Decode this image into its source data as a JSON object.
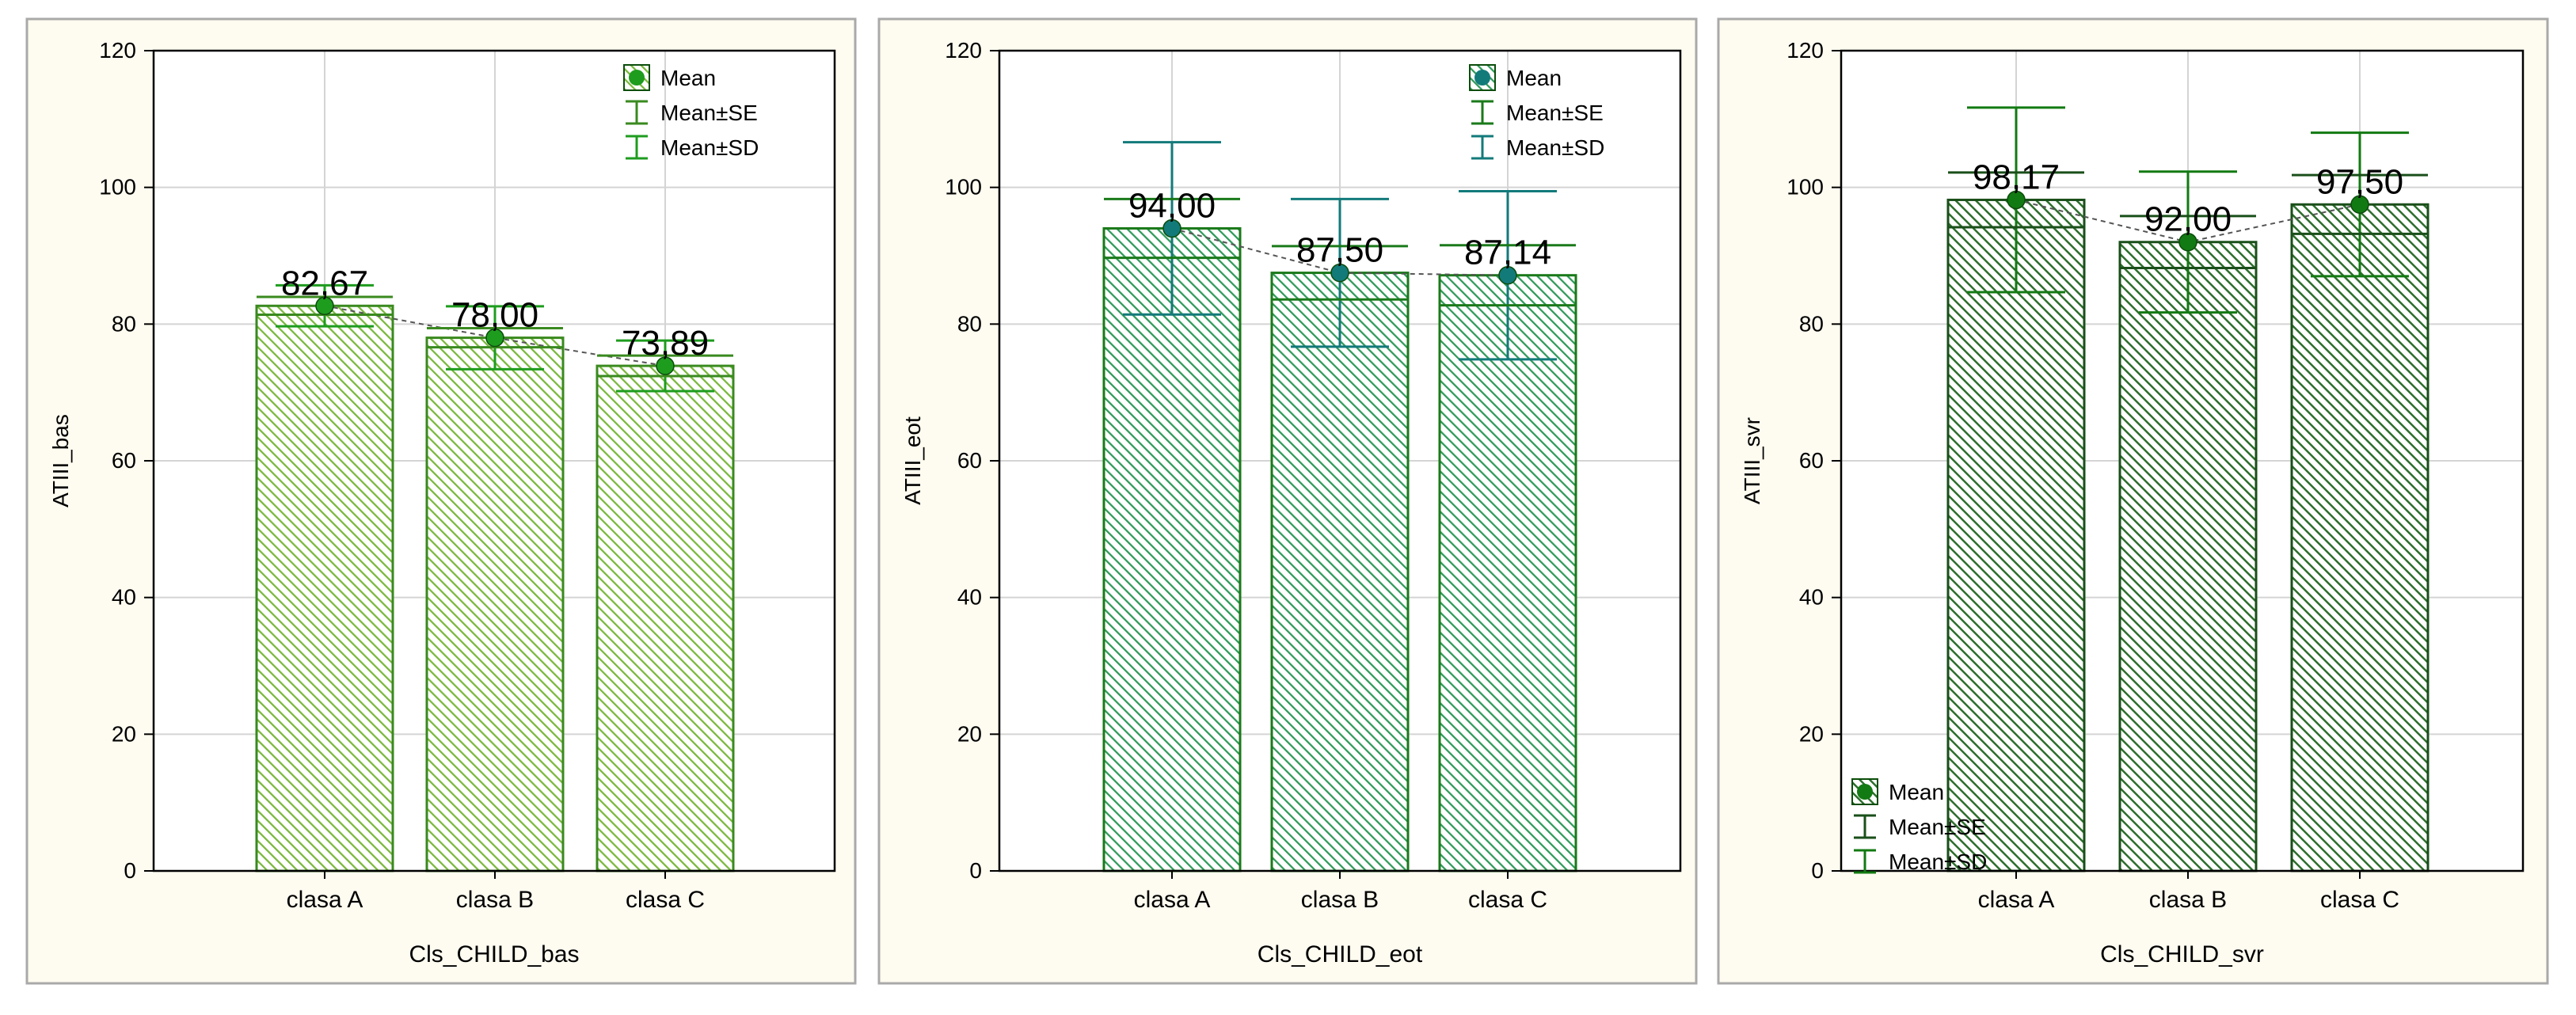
{
  "colors": {
    "panel_bg": "#fefbf0",
    "panel_border": "#a9a9a9",
    "plot_bg": "#ffffff",
    "grid": "#d4d4d4",
    "axis": "#000000"
  },
  "legend_labels": {
    "mean": "Mean",
    "se": "Mean±SE",
    "sd": "Mean±SD"
  },
  "chart_data": [
    {
      "type": "bar",
      "categories": [
        "clasa A",
        "clasa B",
        "clasa C"
      ],
      "means": [
        82.67,
        78.0,
        73.89
      ],
      "mean_labels": [
        "82,67",
        "78,00",
        "73,89"
      ],
      "se": [
        1.3,
        1.4,
        1.5
      ],
      "sd": [
        3.0,
        4.6,
        3.7
      ],
      "ylim": [
        0,
        120
      ],
      "yticks": [
        0,
        20,
        40,
        60,
        80,
        100,
        120
      ],
      "ylabel": "ATIII_bas",
      "xlabel": "Cls_CHILD_bas",
      "grid": true,
      "legend": "top-right",
      "color_main": "#7ab83c",
      "color_line": "#3a8a1f",
      "color_mean": "#1e9c1e"
    },
    {
      "type": "bar",
      "categories": [
        "clasa A",
        "clasa B",
        "clasa C"
      ],
      "means": [
        94.0,
        87.5,
        87.14
      ],
      "mean_labels": [
        "94,00",
        "87,50",
        "87,14"
      ],
      "se": [
        4.3,
        3.9,
        4.4
      ],
      "sd": [
        12.6,
        10.8,
        12.3
      ],
      "ylim": [
        0,
        120
      ],
      "yticks": [
        0,
        20,
        40,
        60,
        80,
        100,
        120
      ],
      "ylabel": "ATIII_eot",
      "xlabel": "Cls_CHILD_eot",
      "grid": true,
      "legend": "top-right",
      "color_main": "#2f9a5a",
      "color_line": "#1a7a1a",
      "color_mean": "#137a7a"
    },
    {
      "type": "bar",
      "categories": [
        "clasa A",
        "clasa B",
        "clasa C"
      ],
      "means": [
        98.17,
        92.0,
        97.5
      ],
      "mean_labels": [
        "98,17",
        "92,00",
        "97,50"
      ],
      "se": [
        4.0,
        3.8,
        4.3
      ],
      "sd": [
        13.5,
        10.3,
        10.5
      ],
      "ylim": [
        0,
        120
      ],
      "yticks": [
        0,
        20,
        40,
        60,
        80,
        100,
        120
      ],
      "ylabel": "ATIII_svr",
      "xlabel": "Cls_CHILD_svr",
      "grid": true,
      "legend": "bottom-left",
      "color_main": "#2d6e2d",
      "color_line": "#1a4f1a",
      "color_mean": "#127a12"
    }
  ]
}
